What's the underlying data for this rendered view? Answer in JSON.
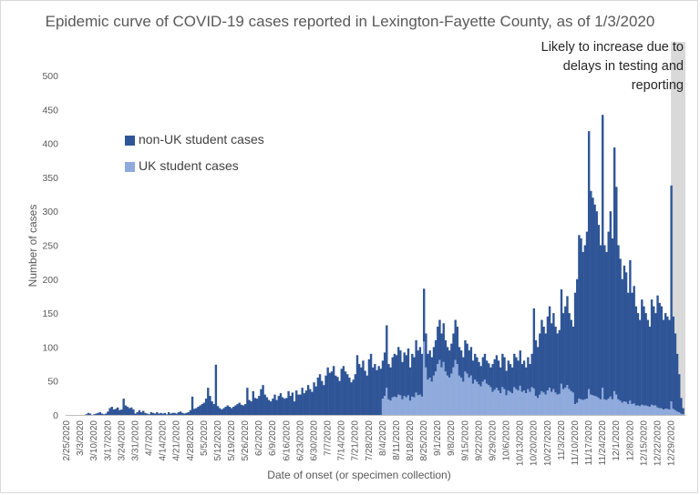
{
  "chart_data": {
    "type": "bar",
    "stacked": true,
    "title": "Epidemic curve of COVID-19 cases reported in Lexington-Fayette County, as of 1/3/2020",
    "xlabel": "Date of onset (or specimen collection)",
    "ylabel": "Number of cases",
    "ylim": [
      0,
      500
    ],
    "yticks": [
      "0",
      "50",
      "100",
      "150",
      "200",
      "250",
      "300",
      "350",
      "400",
      "450",
      "500"
    ],
    "xtick_labels": [
      "2/25/2020",
      "3/3/2020",
      "3/10/2020",
      "3/17/2020",
      "3/24/2020",
      "3/31/2020",
      "4/7/2020",
      "4/14/2020",
      "4/21/2020",
      "4/28/2020",
      "5/5/2020",
      "5/12/2020",
      "5/19/2020",
      "5/26/2020",
      "6/2/2020",
      "6/9/2020",
      "6/16/2020",
      "6/23/2020",
      "6/30/2020",
      "7/7/2020",
      "7/14/2020",
      "7/21/2020",
      "7/28/2020",
      "8/4/2020",
      "8/11/2020",
      "8/18/2020",
      "8/25/2020",
      "9/1/2020",
      "9/8/2020",
      "9/15/2020",
      "9/22/2020",
      "9/29/2020",
      "10/6/2020",
      "10/13/2020",
      "10/20/2020",
      "10/27/2020",
      "11/3/2020",
      "11/10/2020",
      "11/17/2020",
      "11/24/2020",
      "12/1/2020",
      "12/8/2020",
      "12/15/2020",
      "12/22/2020",
      "12/29/2020"
    ],
    "grid": false,
    "legend_position": "left",
    "annotation": "Likely to increase due to delays in testing and reporting",
    "shaded_from_week": 44.05,
    "colors": {
      "nonuk": "#2f5597",
      "uk": "#8faadc",
      "shade": "#d9d9d9"
    },
    "series": [
      {
        "name": "non-UK student cases"
      },
      {
        "name": "UK student cases"
      }
    ],
    "weekly_totals": [
      [
        0,
        0,
        0,
        0,
        0,
        0,
        0
      ],
      [
        0,
        0,
        0,
        1,
        3,
        2,
        0
      ],
      [
        1,
        2,
        3,
        4,
        2,
        1,
        2
      ],
      [
        5,
        10,
        12,
        8,
        9,
        11,
        7
      ],
      [
        8,
        24,
        14,
        12,
        10,
        11,
        8
      ],
      [
        2,
        4,
        7,
        4,
        6,
        3,
        2
      ],
      [
        1,
        4,
        3,
        2,
        4,
        2,
        3
      ],
      [
        2,
        3,
        1,
        4,
        2,
        3,
        3
      ],
      [
        2,
        4,
        5,
        3,
        2,
        3,
        4
      ],
      [
        7,
        27,
        9,
        10,
        12,
        14,
        16
      ],
      [
        18,
        24,
        40,
        28,
        20,
        16,
        74
      ],
      [
        13,
        10,
        8,
        10,
        12,
        14,
        12
      ],
      [
        10,
        12,
        14,
        16,
        18,
        15,
        14
      ],
      [
        16,
        40,
        22,
        20,
        35,
        25,
        24
      ],
      [
        28,
        38,
        44,
        30,
        26,
        22,
        20
      ],
      [
        24,
        30,
        22,
        28,
        32,
        26,
        24
      ],
      [
        25,
        35,
        28,
        33,
        20,
        36,
        30
      ],
      [
        30,
        40,
        32,
        36,
        44,
        38,
        34
      ],
      [
        48,
        42,
        55,
        60,
        50,
        44,
        58
      ],
      [
        70,
        62,
        64,
        72,
        58,
        56,
        50
      ],
      [
        68,
        72,
        64,
        60,
        55,
        48,
        52
      ],
      [
        60,
        88,
        75,
        70,
        80,
        65,
        58
      ],
      [
        82,
        90,
        70,
        75,
        66,
        72,
        68
      ],
      [
        80,
        92,
        132,
        75,
        70,
        85,
        90
      ],
      [
        88,
        100,
        95,
        78,
        92,
        88,
        98
      ],
      [
        70,
        90,
        85,
        110,
        95,
        100,
        90
      ],
      [
        186,
        120,
        90,
        95,
        85,
        100,
        110
      ],
      [
        130,
        140,
        120,
        135,
        110,
        100,
        95
      ],
      [
        105,
        120,
        140,
        130,
        100,
        95,
        85
      ],
      [
        110,
        105,
        95,
        100,
        80,
        90,
        85
      ],
      [
        78,
        72,
        85,
        90,
        80,
        76,
        70
      ],
      [
        75,
        82,
        88,
        80,
        70,
        90,
        85
      ],
      [
        65,
        80,
        75,
        70,
        90,
        85,
        80
      ],
      [
        95,
        75,
        80,
        70,
        85,
        75,
        90
      ],
      [
        157,
        110,
        100,
        120,
        140,
        130,
        120
      ],
      [
        145,
        160,
        135,
        150,
        130,
        120,
        125
      ],
      [
        185,
        150,
        160,
        175,
        150,
        140,
        130
      ],
      [
        180,
        200,
        265,
        260,
        240,
        250,
        270
      ],
      [
        418,
        330,
        320,
        310,
        300,
        280,
        250
      ],
      [
        442,
        250,
        240,
        270,
        300,
        260,
        394
      ],
      [
        336,
        250,
        230,
        200,
        220,
        210,
        180
      ],
      [
        228,
        180,
        190,
        160,
        150,
        140,
        170
      ],
      [
        160,
        150,
        140,
        130,
        170,
        160,
        150
      ],
      [
        176,
        165,
        160,
        140,
        150,
        145,
        140
      ],
      [
        338,
        145,
        120,
        90,
        60,
        25,
        10
      ]
    ]
  }
}
